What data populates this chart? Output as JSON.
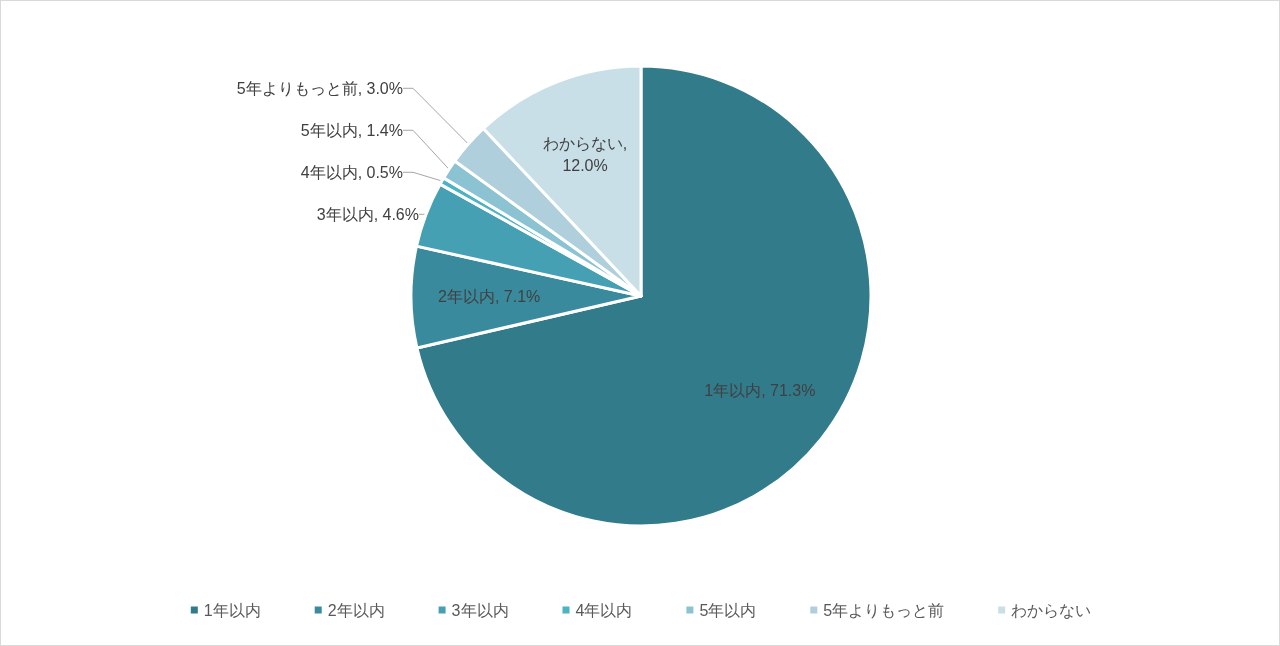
{
  "chart_data": {
    "type": "pie",
    "categories": [
      "1年以内",
      "2年以内",
      "3年以内",
      "4年以内",
      "5年以内",
      "5年よりもっと前",
      "わからない"
    ],
    "values": [
      71.3,
      7.1,
      4.6,
      0.5,
      1.4,
      3.0,
      12.0
    ],
    "colors": [
      "#327b8b",
      "#3a8a9e",
      "#45a0b4",
      "#4bb3c2",
      "#8cc3d3",
      "#afcfdc",
      "#c8dfe7"
    ],
    "value_labels": [
      "1年以内, 71.3%",
      "2年以内, 7.1%",
      "3年以内, 4.6%",
      "4年以内, 0.5%",
      "5年以内, 1.4%",
      "5年よりもっと前, 3.0%",
      "わからない, 12.0%"
    ],
    "legend": "bottom"
  }
}
